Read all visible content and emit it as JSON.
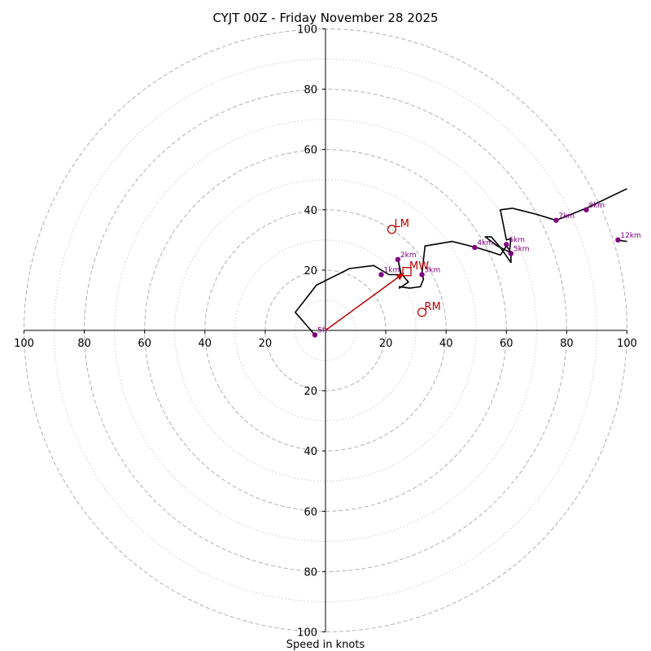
{
  "chart_data": {
    "type": "hodograph",
    "title": "CYJT 00Z - Friday November 28 2025",
    "xlabel": "Speed in knots",
    "units": "knots",
    "range": [
      -100,
      100
    ],
    "rings": [
      10,
      20,
      30,
      40,
      50,
      60,
      70,
      80,
      90,
      100
    ],
    "ring_ticks": [
      20,
      40,
      60,
      80,
      100
    ],
    "x_tick_labels": [
      "100",
      "80",
      "60",
      "40",
      "20",
      "20",
      "40",
      "60",
      "80",
      "100"
    ],
    "y_tick_labels": [
      "100",
      "80",
      "60",
      "40",
      "20",
      "20",
      "40",
      "60",
      "80",
      "100"
    ],
    "trace": [
      [
        -3.5,
        -1.5
      ],
      [
        -10,
        6
      ],
      [
        -3,
        15
      ],
      [
        3,
        18
      ],
      [
        8,
        20.5
      ],
      [
        16,
        21.5
      ],
      [
        21,
        18.5
      ],
      [
        25,
        18.5
      ],
      [
        24,
        24
      ],
      [
        25,
        19
      ],
      [
        27.5,
        16
      ],
      [
        24.5,
        14
      ],
      [
        24.5,
        14.5
      ],
      [
        28,
        14
      ],
      [
        31.5,
        14.5
      ],
      [
        32.5,
        17
      ],
      [
        32,
        19
      ],
      [
        33,
        28
      ],
      [
        42,
        29.5
      ],
      [
        50,
        27.5
      ],
      [
        55,
        26
      ],
      [
        58,
        25
      ],
      [
        60,
        28
      ],
      [
        61.5,
        26
      ],
      [
        61.5,
        22.5
      ],
      [
        58,
        27.5
      ],
      [
        55,
        31
      ],
      [
        53,
        31
      ],
      [
        57,
        28
      ],
      [
        61,
        26
      ],
      [
        61.5,
        30.5
      ],
      [
        60,
        30
      ],
      [
        58,
        40
      ],
      [
        62,
        40.5
      ],
      [
        70,
        38.5
      ],
      [
        76.5,
        36.5
      ],
      [
        86.5,
        40.5
      ],
      [
        100,
        47
      ]
    ],
    "trace_tail": [
      [
        96.5,
        30
      ],
      [
        100,
        29.5
      ]
    ],
    "height_markers": [
      {
        "label": "5ft",
        "u": -3.5,
        "v": -1.5
      },
      {
        "label": "1km",
        "u": 18.5,
        "v": 18.5
      },
      {
        "label": "2km",
        "u": 24,
        "v": 23.5
      },
      {
        "label": "3km",
        "u": 32,
        "v": 18.5
      },
      {
        "label": "4km",
        "u": 49.5,
        "v": 27.5
      },
      {
        "label": "6km",
        "u": 60,
        "v": 28.5
      },
      {
        "label": "5km",
        "u": 61.5,
        "v": 25.5
      },
      {
        "label": "7km",
        "u": 76.5,
        "v": 36.5
      },
      {
        "label": "8km",
        "u": 86.5,
        "v": 40
      },
      {
        "label": "12km",
        "u": 97,
        "v": 30
      }
    ],
    "motion_markers": [
      {
        "label": "LM",
        "u": 22,
        "v": 33.5,
        "shape": "circle"
      },
      {
        "label": "MW",
        "u": 27,
        "v": 19.5,
        "shape": "square"
      },
      {
        "label": "RM",
        "u": 32,
        "v": 6,
        "shape": "circle"
      }
    ],
    "mean_wind_vector": {
      "from": [
        0,
        0
      ],
      "to": [
        26,
        19
      ]
    }
  },
  "colors": {
    "trace": "#000000",
    "height_marker": "#800080",
    "motion": "#c00000",
    "grid": "#b0b0b0",
    "grid_minor": "#c8c8c8",
    "axis": "#000000"
  }
}
